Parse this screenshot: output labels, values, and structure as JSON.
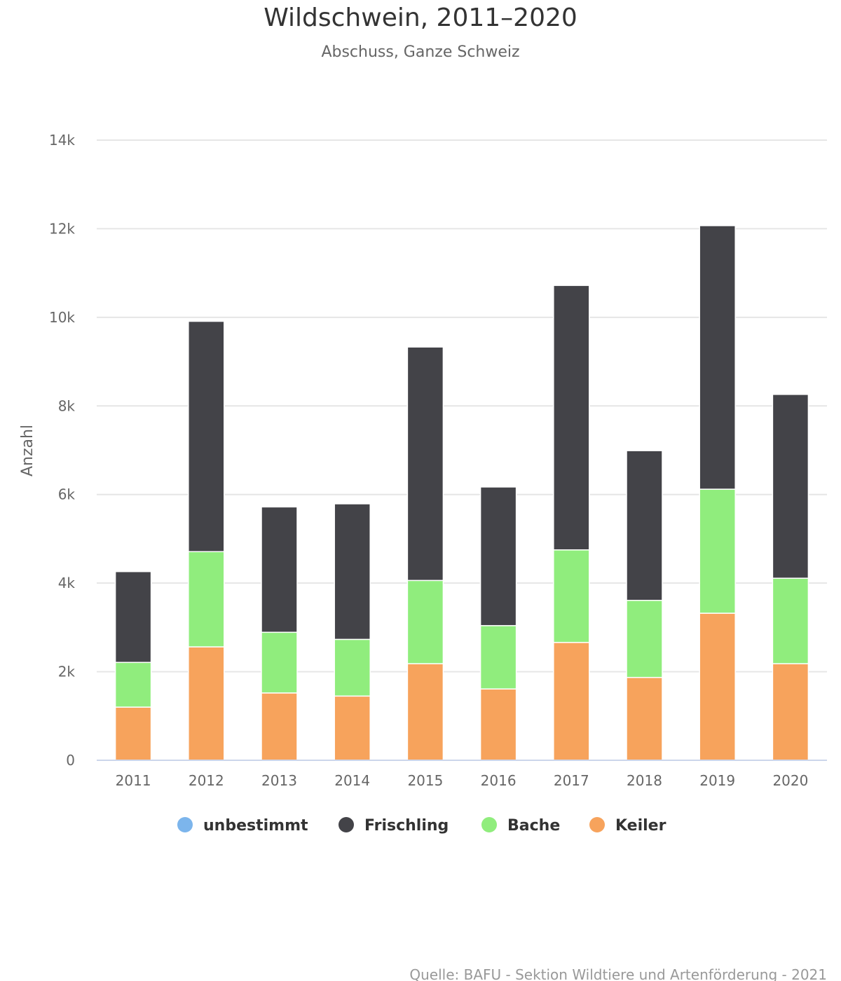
{
  "chart_data": {
    "type": "bar",
    "stacked": true,
    "title": "Wildschwein, 2011–2020",
    "subtitle": "Abschuss, Ganze Schweiz",
    "ylabel": "Anzahl",
    "xlabel": "",
    "ylim": [
      0,
      14000
    ],
    "yticks": [
      0,
      2000,
      4000,
      6000,
      8000,
      10000,
      12000,
      14000
    ],
    "ytick_labels": [
      "0",
      "2k",
      "4k",
      "6k",
      "8k",
      "10k",
      "12k",
      "14k"
    ],
    "grid": true,
    "legend_position": "bottom-center",
    "categories": [
      "2011",
      "2012",
      "2013",
      "2014",
      "2015",
      "2016",
      "2017",
      "2018",
      "2019",
      "2020"
    ],
    "series": [
      {
        "name": "unbestimmt",
        "color": "#7cb5ec",
        "values": [
          0,
          0,
          0,
          0,
          0,
          0,
          0,
          0,
          0,
          0
        ]
      },
      {
        "name": "Frischling",
        "color": "#434348",
        "values": [
          2050,
          5200,
          2830,
          3060,
          5270,
          3130,
          5970,
          3380,
          5950,
          4150
        ]
      },
      {
        "name": "Bache",
        "color": "#90ed7d",
        "values": [
          1010,
          2150,
          1370,
          1280,
          1880,
          1430,
          2090,
          1740,
          2800,
          1930
        ]
      },
      {
        "name": "Keiler",
        "color": "#f7a35c",
        "values": [
          1200,
          2560,
          1520,
          1450,
          2180,
          1610,
          2660,
          1870,
          3320,
          2180
        ]
      }
    ],
    "credits": "Quelle: BAFU - Sektion Wildtiere und Artenförderung - 2021"
  }
}
